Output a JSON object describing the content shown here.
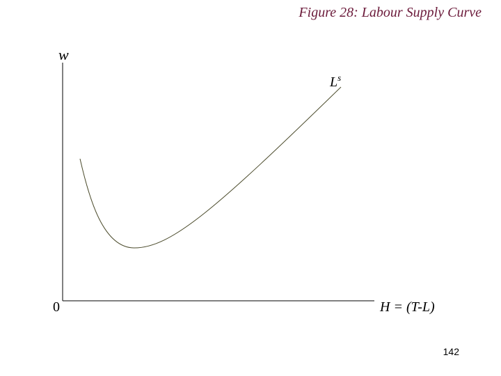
{
  "title": "Figure 28: Labour Supply Curve",
  "axes": {
    "y_label": "w",
    "x_label": "H = (T-L)",
    "origin": "0"
  },
  "curve": {
    "label": "L",
    "label_sup": "s"
  },
  "page_number": "142"
}
